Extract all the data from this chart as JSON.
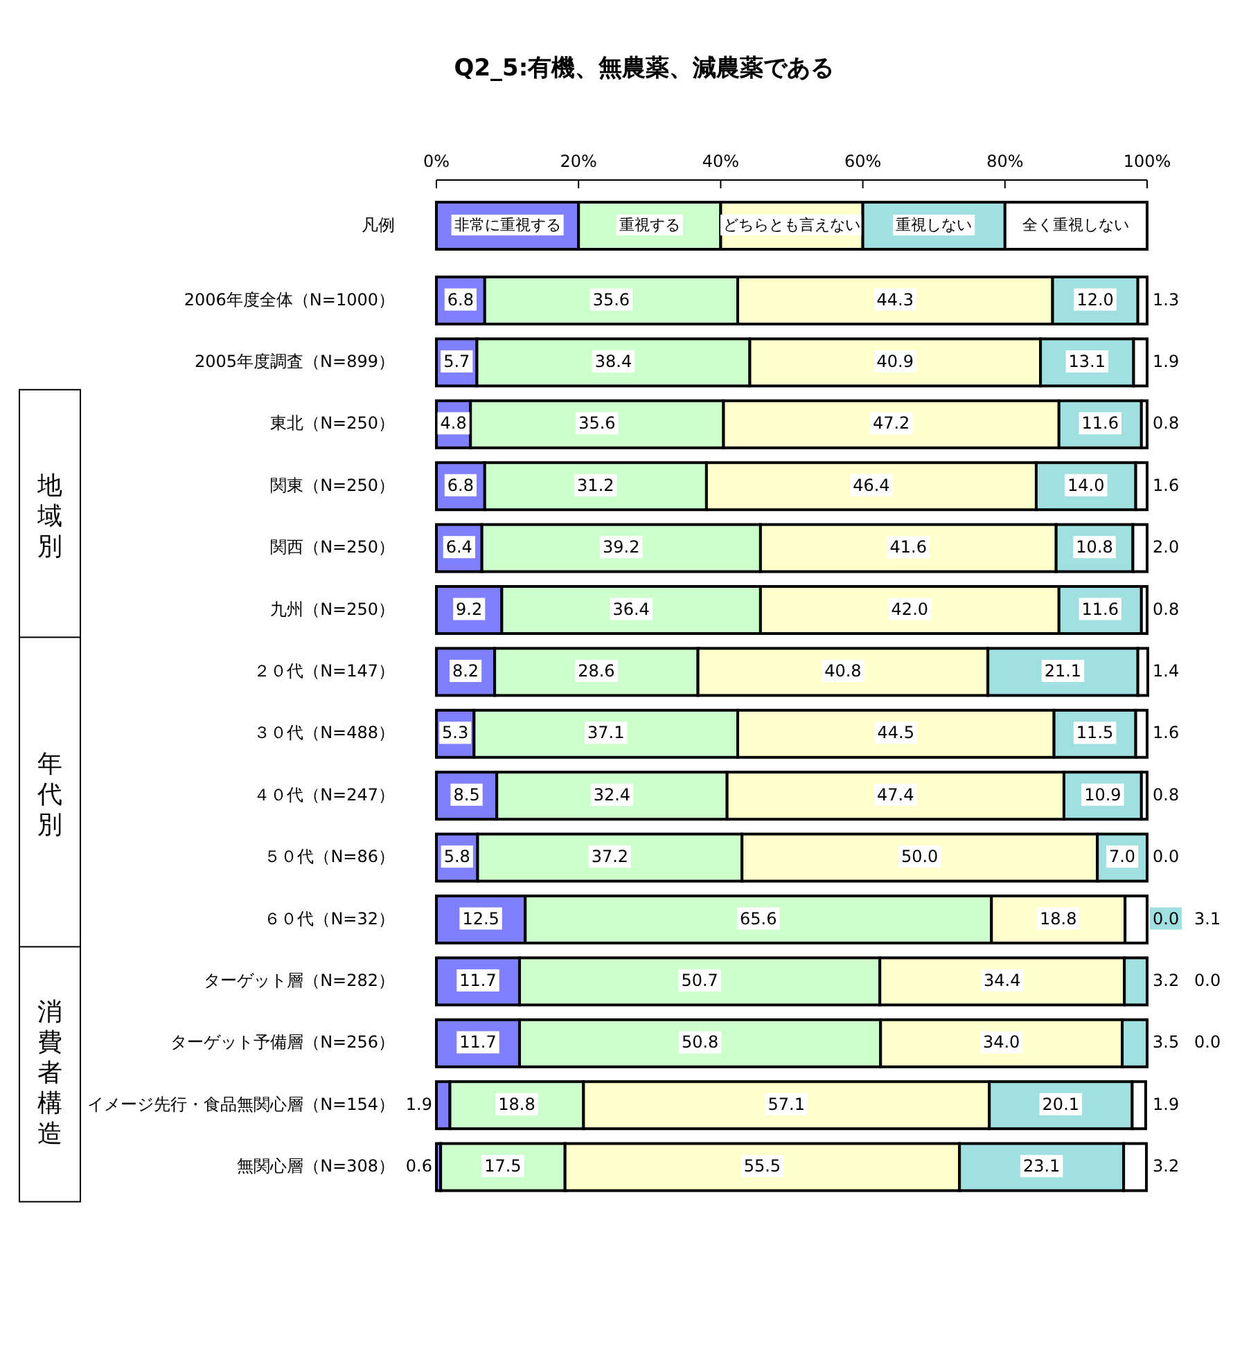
{
  "chart_data": {
    "type": "bar",
    "orientation": "horizontal",
    "stacked": true,
    "title": "Q2_5:有機、無農薬、減農薬である",
    "legend_title": "凡例",
    "legend": "top",
    "xlim": [
      0,
      100
    ],
    "xticks": [
      {
        "value": 0,
        "label": "0%"
      },
      {
        "value": 20,
        "label": "20%"
      },
      {
        "value": 40,
        "label": "40%"
      },
      {
        "value": 60,
        "label": "60%"
      },
      {
        "value": 80,
        "label": "80%"
      },
      {
        "value": 100,
        "label": "100%"
      }
    ],
    "categories": [
      "2006年度全体（N=1000）",
      "2005年度調査（N=899）",
      "東北（N=250）",
      "関東（N=250）",
      "関西（N=250）",
      "九州（N=250）",
      "２０代（N=147）",
      "３０代（N=488）",
      "４０代（N=247）",
      "５０代（N=86）",
      "６０代（N=32）",
      "ターゲット層（N=282）",
      "ターゲット予備層（N=256）",
      "イメージ先行・食品無関心層（N=154）",
      "無関心層（N=308）"
    ],
    "annotations": [
      "地域別",
      "年代別",
      "消費者構造"
    ],
    "series": [
      {
        "name": "非常に重視する",
        "color": "#8080ff",
        "values": [
          6.8,
          5.7,
          4.8,
          6.8,
          6.4,
          9.2,
          8.2,
          5.3,
          8.5,
          5.8,
          12.5,
          11.7,
          11.7,
          1.9,
          0.6
        ],
        "value_labels": [
          "6.8",
          "5.7",
          "4.8",
          "6.8",
          "6.4",
          "9.2",
          "8.2",
          "5.3",
          "8.5",
          "5.8",
          "12.5",
          "11.7",
          "11.7",
          "1.9",
          "0.6"
        ]
      },
      {
        "name": "重視する",
        "color": "#ccffcc",
        "values": [
          35.6,
          38.4,
          35.6,
          31.2,
          39.2,
          36.4,
          28.6,
          37.1,
          32.4,
          37.2,
          65.6,
          50.7,
          50.8,
          18.8,
          17.5
        ],
        "value_labels": [
          "35.6",
          "38.4",
          "35.6",
          "31.2",
          "39.2",
          "36.4",
          "28.6",
          "37.1",
          "32.4",
          "37.2",
          "65.6",
          "50.7",
          "50.8",
          "18.8",
          "17.5"
        ]
      },
      {
        "name": "どちらとも言えない",
        "color": "#ffffcc",
        "values": [
          44.3,
          40.9,
          47.2,
          46.4,
          41.6,
          42.0,
          40.8,
          44.5,
          47.4,
          50.0,
          18.8,
          34.4,
          34.0,
          57.1,
          55.5
        ],
        "value_labels": [
          "44.3",
          "40.9",
          "47.2",
          "46.4",
          "41.6",
          "42.0",
          "40.8",
          "44.5",
          "47.4",
          "50.0",
          "18.8",
          "34.4",
          "34.0",
          "57.1",
          "55.5"
        ]
      },
      {
        "name": "重視しない",
        "color": "#a0e0e0",
        "values": [
          12.0,
          13.1,
          11.6,
          14.0,
          10.8,
          11.6,
          21.1,
          11.5,
          10.9,
          7.0,
          0.0,
          3.2,
          3.5,
          20.1,
          23.1
        ],
        "value_labels": [
          "12.0",
          "13.1",
          "11.6",
          "14.0",
          "10.8",
          "11.6",
          "21.1",
          "11.5",
          "10.9",
          "7.0",
          "0.0",
          "3.2",
          "3.5",
          "20.1",
          "23.1"
        ]
      },
      {
        "name": "全く重視しない",
        "color": "#ffffff",
        "values": [
          1.3,
          1.9,
          0.8,
          1.6,
          2.0,
          0.8,
          1.4,
          1.6,
          0.8,
          0.0,
          3.1,
          0.0,
          0.0,
          1.9,
          3.2
        ],
        "value_labels": [
          "1.3",
          "1.9",
          "0.8",
          "1.6",
          "2.0",
          "0.8",
          "1.4",
          "1.6",
          "0.8",
          "0.0",
          "3.1",
          "0.0",
          "0.0",
          "1.9",
          "3.2"
        ]
      }
    ]
  }
}
